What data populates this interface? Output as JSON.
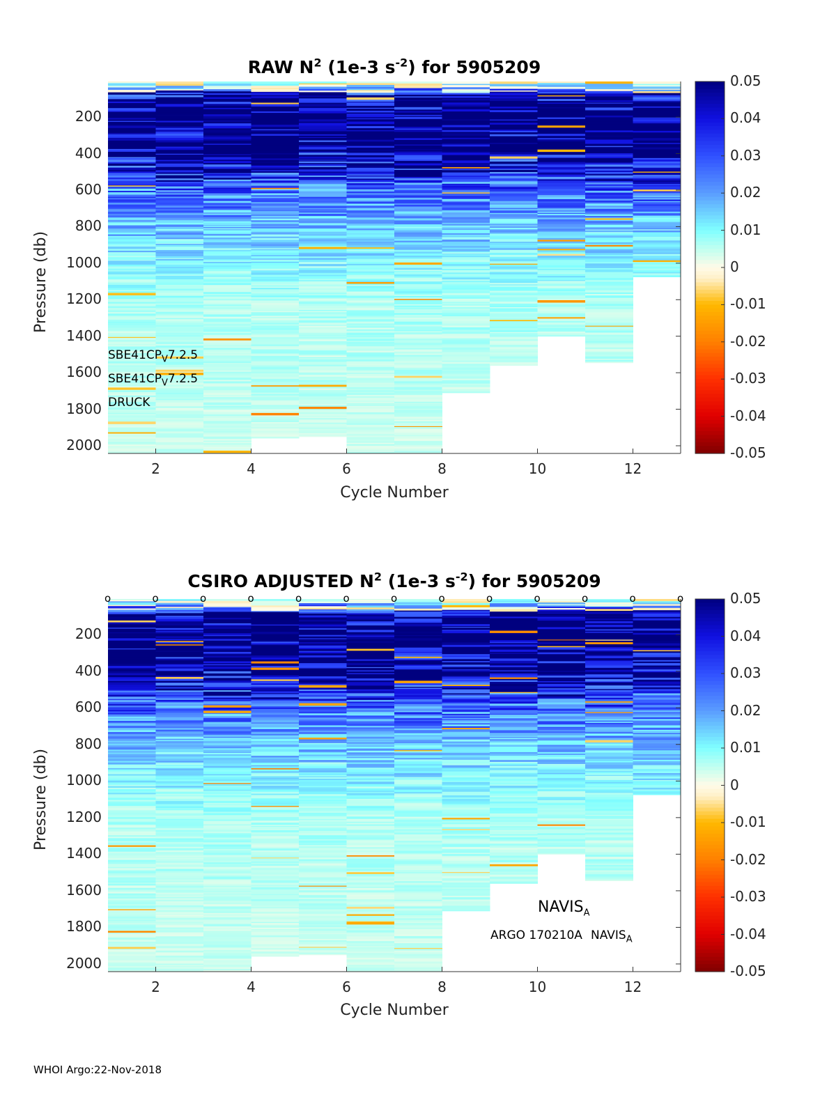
{
  "footer": "WHOI Argo:22-Nov-2018",
  "colors": {
    "colormap": [
      [
        "-0.05",
        "#800000"
      ],
      [
        "-0.04",
        "#e00000"
      ],
      [
        "-0.03",
        "#ff3000"
      ],
      [
        "-0.02",
        "#ff8000"
      ],
      [
        "-0.01",
        "#ffb800"
      ],
      [
        "-0.003",
        "#fff0c8"
      ],
      [
        "0",
        "#fffbe8"
      ],
      [
        "0.005",
        "#c0fff0"
      ],
      [
        "0.01",
        "#80ffff"
      ],
      [
        "0.02",
        "#5a9cff"
      ],
      [
        "0.03",
        "#3050ff"
      ],
      [
        "0.04",
        "#1010e0"
      ],
      [
        "0.05",
        "#00007f"
      ]
    ]
  },
  "chart_data": [
    {
      "type": "heatmap",
      "title_parts": [
        "RAW N",
        "2",
        " (1e-3 s",
        "-2",
        ") for 5905209"
      ],
      "xlabel": "Cycle Number",
      "ylabel": "Pressure (db)",
      "xlim": [
        1,
        13
      ],
      "ylim": [
        2042,
        5
      ],
      "xticks": [
        "2",
        "4",
        "6",
        "8",
        "10",
        "12"
      ],
      "yticks": [
        "200",
        "400",
        "600",
        "800",
        "1000",
        "1200",
        "1400",
        "1600",
        "1800",
        "2000"
      ],
      "cycles": [
        1,
        2,
        3,
        4,
        5,
        6,
        7,
        8,
        9,
        10,
        11,
        12
      ],
      "max_pressure": [
        2040,
        2040,
        2040,
        1958,
        1950,
        2040,
        2040,
        1710,
        1560,
        1400,
        1545,
        1075
      ],
      "mean_profile": {
        "pressure": [
          0,
          50,
          100,
          200,
          400,
          600,
          800,
          1000,
          1200,
          1600,
          2000
        ],
        "n2": [
          0.004,
          0.03,
          0.05,
          0.06,
          0.045,
          0.025,
          0.015,
          0.01,
          0.006,
          0.005,
          0.004
        ]
      },
      "colorbar": {
        "range": [
          -0.05,
          0.05
        ],
        "ticks": [
          "0.05",
          "0.04",
          "0.03",
          "0.02",
          "0.01",
          "0",
          "-0.01",
          "-0.02",
          "-0.03",
          "-0.04",
          "-0.05"
        ]
      },
      "annotations": [
        "SBE41CP",
        "V",
        "7.2.5",
        "SBE41CP",
        "V",
        "7.2.5",
        "DRUCK"
      ],
      "top_markers": false
    },
    {
      "type": "heatmap",
      "title_parts": [
        "CSIRO  ADJUSTED N",
        "2",
        " (1e-3 s",
        "-2",
        ") for 5905209"
      ],
      "xlabel": "Cycle Number",
      "ylabel": "Pressure (db)",
      "xlim": [
        1,
        13
      ],
      "ylim": [
        2042,
        5
      ],
      "xticks": [
        "2",
        "4",
        "6",
        "8",
        "10",
        "12"
      ],
      "yticks": [
        "200",
        "400",
        "600",
        "800",
        "1000",
        "1200",
        "1400",
        "1600",
        "1800",
        "2000"
      ],
      "cycles": [
        1,
        2,
        3,
        4,
        5,
        6,
        7,
        8,
        9,
        10,
        11,
        12
      ],
      "max_pressure": [
        2040,
        2040,
        2040,
        1958,
        1950,
        2040,
        2040,
        1710,
        1560,
        1400,
        1545,
        1075
      ],
      "mean_profile": {
        "pressure": [
          0,
          50,
          100,
          200,
          400,
          600,
          800,
          1000,
          1200,
          1600,
          2000
        ],
        "n2": [
          0.004,
          0.03,
          0.05,
          0.06,
          0.045,
          0.025,
          0.015,
          0.01,
          0.006,
          0.005,
          0.004
        ]
      },
      "colorbar": {
        "range": [
          -0.05,
          0.05
        ],
        "ticks": [
          "0.05",
          "0.04",
          "0.03",
          "0.02",
          "0.01",
          "0",
          "-0.01",
          "-0.02",
          "-0.03",
          "-0.04",
          "-0.05"
        ]
      },
      "annotations": [
        "ARGO 170210A",
        "NAVIS",
        "A",
        "NAVIS",
        "A"
      ],
      "top_marker_label": "o",
      "top_markers": true
    }
  ]
}
